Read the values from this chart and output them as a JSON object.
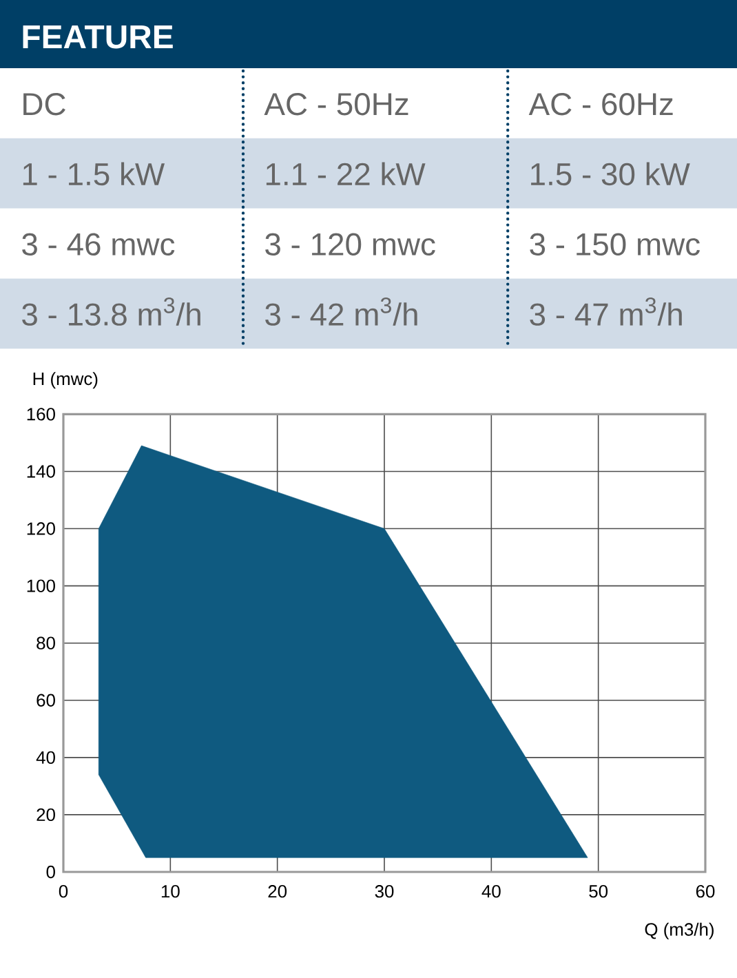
{
  "chart_data": [
    {
      "type": "other",
      "title": "FEATURE",
      "categories": [
        "DC",
        "AC - 50Hz",
        "AC - 60Hz"
      ],
      "annotations": [
        "1 - 1.5 kW",
        "1.1 - 22 kW",
        "1.5 - 30 kW",
        "3 - 46 mwc",
        "3 - 120 mwc",
        "3 - 150 mwc",
        "3 - 13.8 m$^{3}$/h",
        "3 - 42 m$^{3}$/h",
        "3 - 47 m$^{3}$/h"
      ]
    },
    {
      "type": "area",
      "xlabel": "Q (m3/h)",
      "ylabel": "H (mwc)",
      "x": [
        3.3,
        3.3,
        7.3,
        30,
        49,
        7.7
      ],
      "values": [
        34,
        120,
        149,
        120,
        5,
        5
      ],
      "color": "#0f5a80",
      "xlim": [
        0,
        60
      ],
      "ylim": [
        0,
        160
      ],
      "xticks": [
        0,
        10,
        20,
        30,
        40,
        50,
        60
      ],
      "yticks": [
        0,
        20,
        40,
        60,
        80,
        100,
        120,
        140,
        160
      ],
      "grid": true
    }
  ]
}
